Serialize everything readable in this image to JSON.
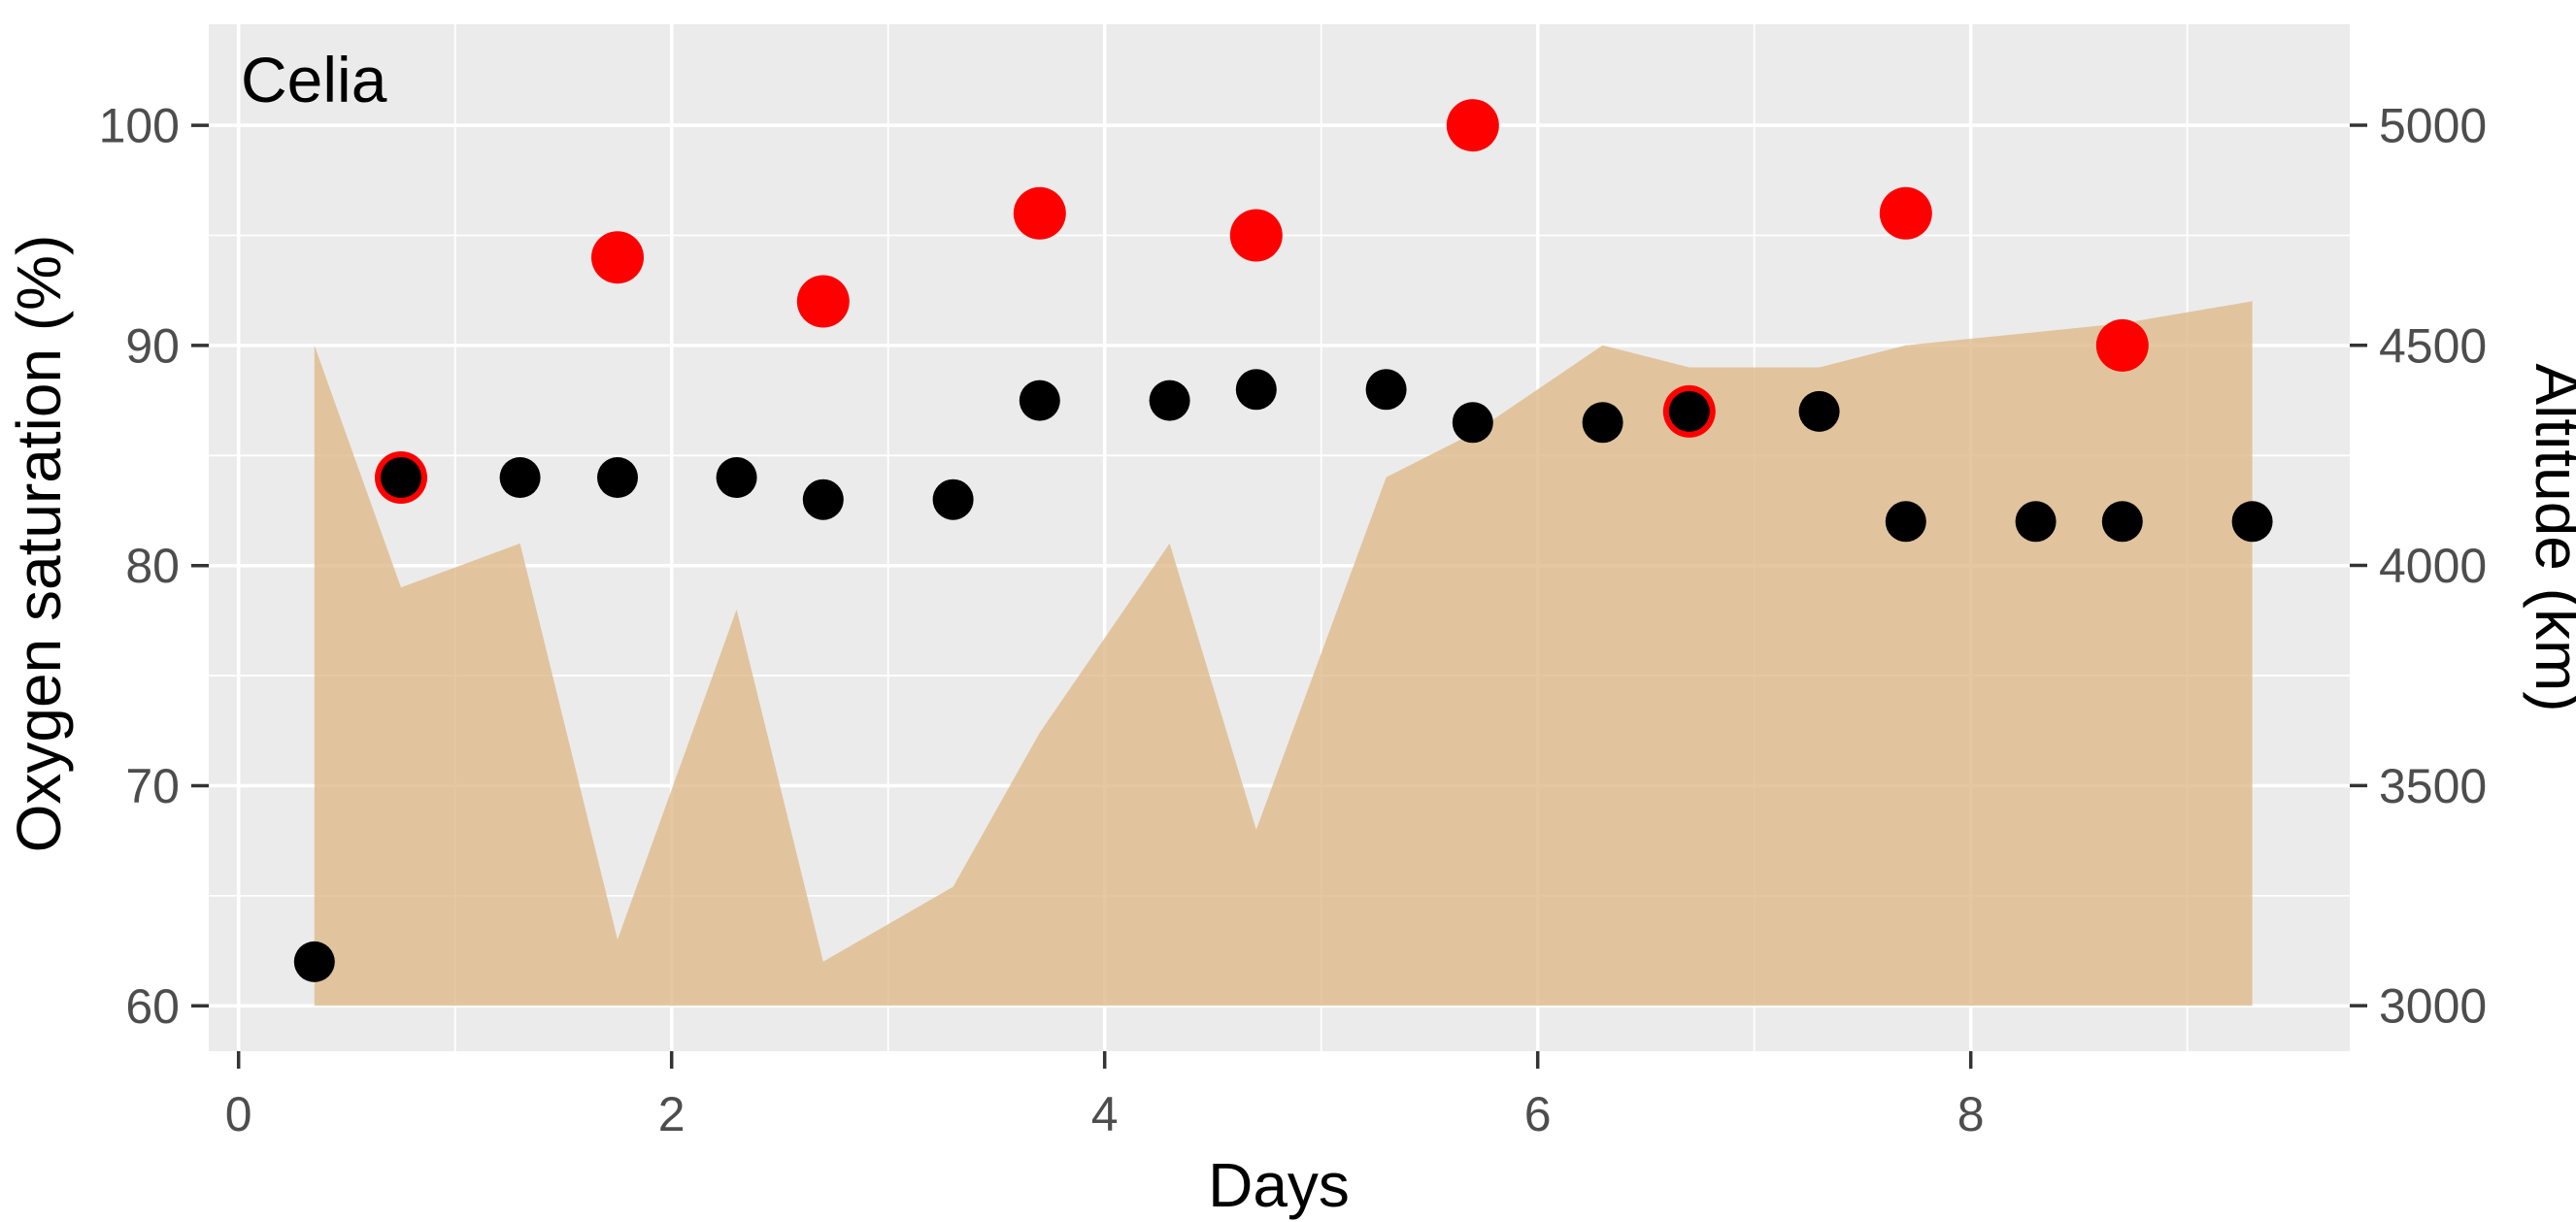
{
  "chart_data": {
    "type": "combo",
    "title": "Celia",
    "xlabel": "Days",
    "ylabel_left": "Oxygen saturation (%)",
    "ylabel_right": "Altitude (km)",
    "grid": true,
    "legend": false,
    "panel_bg": "#EBEBEB",
    "grid_color": "#FFFFFF",
    "tick_color": "#333333",
    "tick_label_color": "#4D4D4D",
    "xlim": [
      -0.1377,
      9.7503
    ],
    "ylim_left": [
      57.94,
      104.59
    ],
    "ylim_right": [
      2896.6,
      5229.3
    ],
    "x_ticks": [
      0,
      2,
      4,
      6,
      8
    ],
    "x_minor": [
      1,
      3,
      5,
      7,
      9
    ],
    "y_ticks_left": [
      100,
      90,
      80,
      70,
      60
    ],
    "y_minor_left": [
      95,
      85,
      75,
      65
    ],
    "y_ticks_right": [
      5000,
      4500,
      4000,
      3500,
      3000
    ],
    "series": [
      {
        "name": "altitude-area",
        "type": "area",
        "axis": "right",
        "color": "#DEB887",
        "opacity": 0.78,
        "baseline": 3000,
        "points": [
          [
            0.35,
            3000
          ],
          [
            0.35,
            4500
          ],
          [
            0.75,
            3950
          ],
          [
            1.3,
            4050
          ],
          [
            1.75,
            3150
          ],
          [
            2.3,
            3900
          ],
          [
            2.7,
            3100
          ],
          [
            3.3,
            3270
          ],
          [
            3.7,
            3620
          ],
          [
            4.3,
            4050
          ],
          [
            4.7,
            3400
          ],
          [
            5.3,
            4200
          ],
          [
            5.7,
            4300
          ],
          [
            6.3,
            4500
          ],
          [
            6.7,
            4450
          ],
          [
            7.3,
            4450
          ],
          [
            7.7,
            4500
          ],
          [
            8.3,
            4530
          ],
          [
            8.7,
            4550
          ],
          [
            9.3,
            4600
          ],
          [
            9.3,
            3000
          ]
        ]
      },
      {
        "name": "red-points",
        "type": "scatter",
        "axis": "left",
        "color": "#FF0000",
        "radius": 27,
        "points": [
          [
            0.75,
            84
          ],
          [
            1.75,
            94
          ],
          [
            2.7,
            92
          ],
          [
            3.7,
            96
          ],
          [
            4.7,
            95
          ],
          [
            5.7,
            100
          ],
          [
            6.7,
            87
          ],
          [
            7.7,
            96
          ],
          [
            8.7,
            90
          ]
        ]
      },
      {
        "name": "black-points",
        "type": "scatter",
        "axis": "left",
        "color": "#000000",
        "radius": 21,
        "points": [
          [
            0.35,
            62
          ],
          [
            0.75,
            84
          ],
          [
            1.3,
            84
          ],
          [
            1.75,
            84
          ],
          [
            2.3,
            84
          ],
          [
            2.7,
            83
          ],
          [
            3.3,
            83
          ],
          [
            3.7,
            87.5
          ],
          [
            4.3,
            87.5
          ],
          [
            4.7,
            88
          ],
          [
            5.3,
            88
          ],
          [
            5.7,
            86.5
          ],
          [
            6.3,
            86.5
          ],
          [
            6.7,
            87
          ],
          [
            7.3,
            87
          ],
          [
            7.7,
            82
          ],
          [
            8.3,
            82
          ],
          [
            8.7,
            82
          ],
          [
            9.3,
            82
          ]
        ]
      }
    ]
  }
}
